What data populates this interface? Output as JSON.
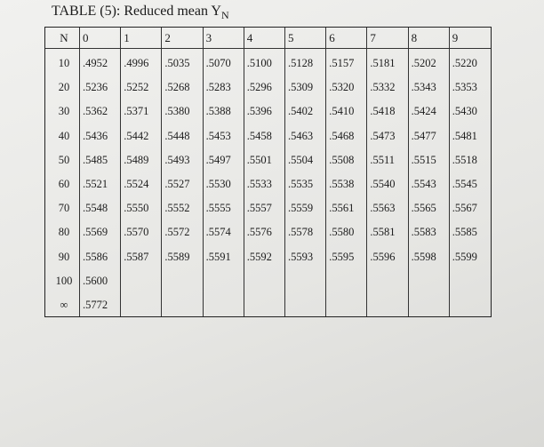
{
  "header": {
    "title": "TABLE (5): Reduced mean Y",
    "title_subscript": "N"
  },
  "table": {
    "columns": [
      "N",
      "0",
      "1",
      "2",
      "3",
      "4",
      "5",
      "6",
      "7",
      "8",
      "9"
    ],
    "rows": [
      [
        "10",
        ".4952",
        ".4996",
        ".5035",
        ".5070",
        ".5100",
        ".5128",
        ".5157",
        ".5181",
        ".5202",
        ".5220"
      ],
      [
        "20",
        ".5236",
        ".5252",
        ".5268",
        ".5283",
        ".5296",
        ".5309",
        ".5320",
        ".5332",
        ".5343",
        ".5353"
      ],
      [
        "30",
        ".5362",
        ".5371",
        ".5380",
        ".5388",
        ".5396",
        ".5402",
        ".5410",
        ".5418",
        ".5424",
        ".5430"
      ],
      [
        "40",
        ".5436",
        ".5442",
        ".5448",
        ".5453",
        ".5458",
        ".5463",
        ".5468",
        ".5473",
        ".5477",
        ".5481"
      ],
      [
        "50",
        ".5485",
        ".5489",
        ".5493",
        ".5497",
        ".5501",
        ".5504",
        ".5508",
        ".5511",
        ".5515",
        ".5518"
      ],
      [
        "60",
        ".5521",
        ".5524",
        ".5527",
        ".5530",
        ".5533",
        ".5535",
        ".5538",
        ".5540",
        ".5543",
        ".5545"
      ],
      [
        "70",
        ".5548",
        ".5550",
        ".5552",
        ".5555",
        ".5557",
        ".5559",
        ".5561",
        ".5563",
        ".5565",
        ".5567"
      ],
      [
        "80",
        ".5569",
        ".5570",
        ".5572",
        ".5574",
        ".5576",
        ".5578",
        ".5580",
        ".5581",
        ".5583",
        ".5585"
      ],
      [
        "90",
        ".5586",
        ".5587",
        ".5589",
        ".5591",
        ".5592",
        ".5593",
        ".5595",
        ".5596",
        ".5598",
        ".5599"
      ],
      [
        "100",
        ".5600"
      ],
      [
        "∞",
        ".5772"
      ]
    ]
  }
}
